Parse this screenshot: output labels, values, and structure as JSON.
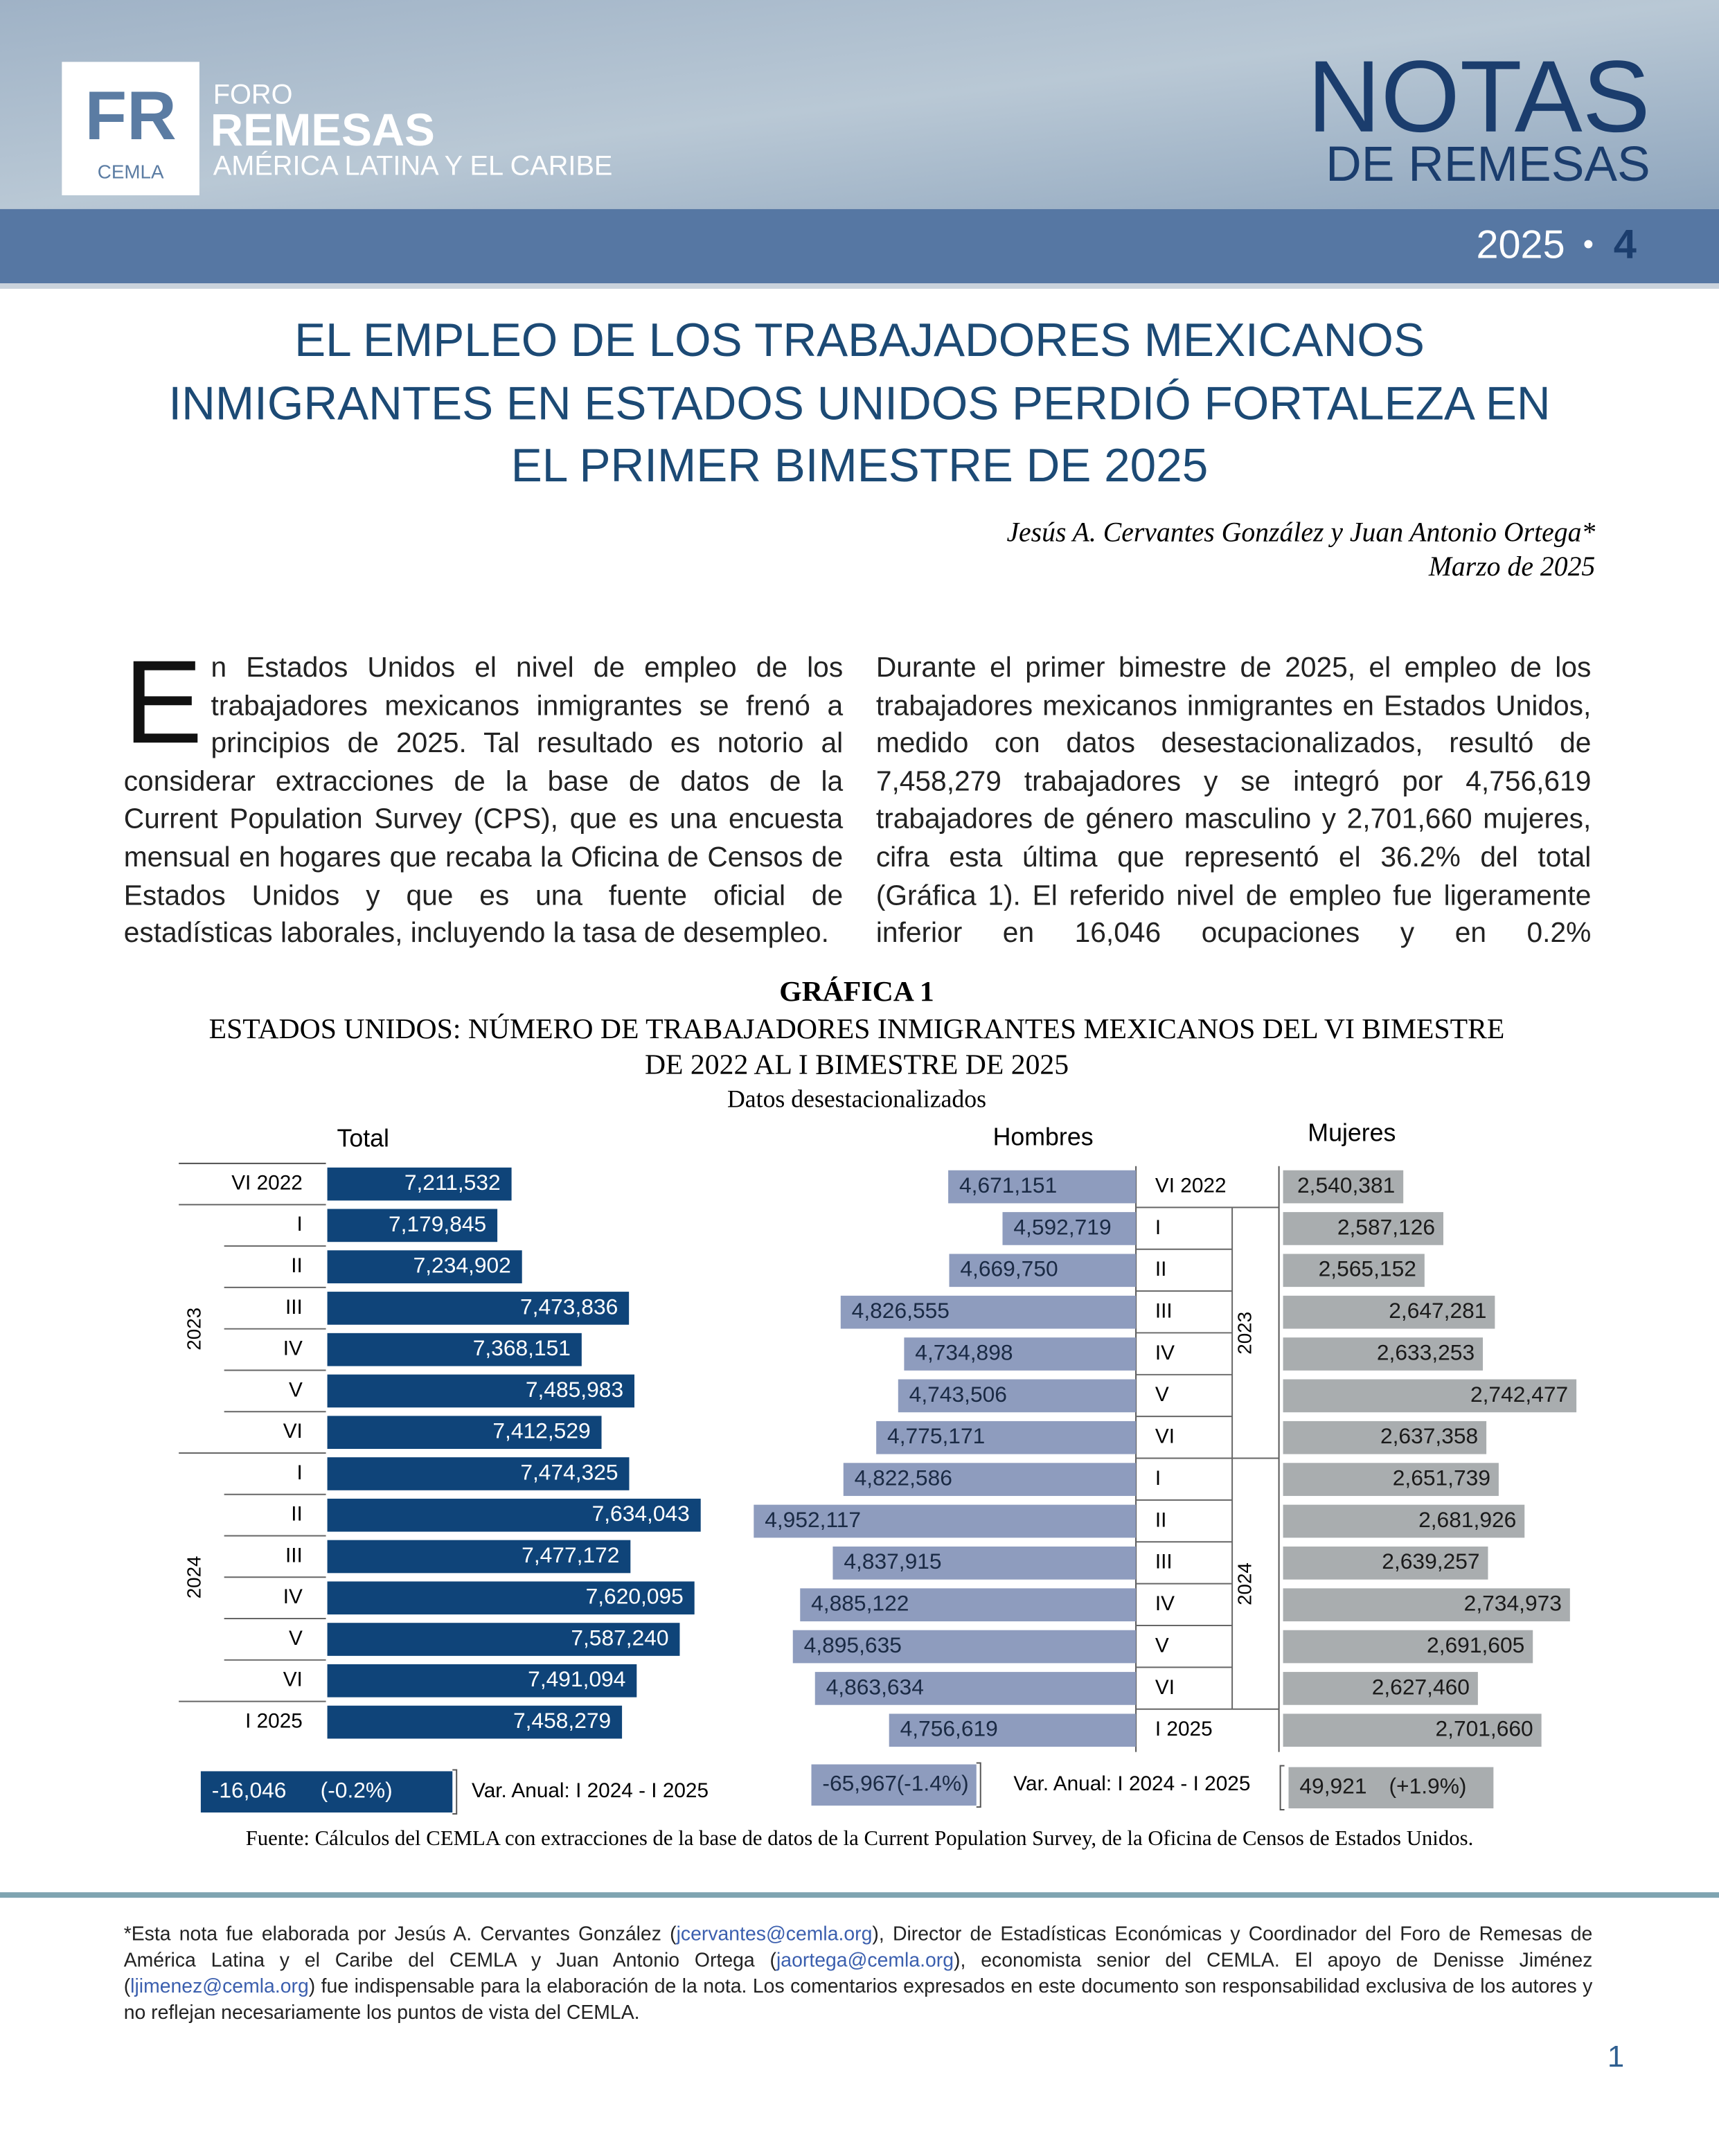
{
  "header": {
    "logo_mark": "FR",
    "logo_org": "CEMLA",
    "foro": "FORO",
    "remesas": "REMESAS",
    "region": "AMÉRICA LATINA Y EL CARIBE",
    "series_title": "NOTAS",
    "series_subtitle": "DE REMESAS",
    "year": "2025",
    "bullet": "•",
    "number": "4"
  },
  "article": {
    "title_lines": [
      "EL EMPLEO DE LOS TRABAJADORES MEXICANOS",
      "INMIGRANTES EN ESTADOS UNIDOS PERDIÓ FORTALEZA EN",
      "EL PRIMER BIMESTRE DE 2025"
    ],
    "authors": "Jesús A. Cervantes González y Juan Antonio Ortega*",
    "date": "Marzo de 2025",
    "col1": {
      "drop_cap": "E",
      "text": "n Estados Unidos el nivel de empleo de los trabajadores mexicanos inmigrantes se frenó a principios de 2025. Tal resultado es notorio al considerar extracciones de la base de datos de la Current Population Survey (CPS), que es una encuesta mensual en hogares que recaba la Oficina de Censos de Estados Unidos y que es una fuente oficial de estadísticas laborales, incluyendo la tasa de desempleo."
    },
    "col2": "Durante el primer bimestre de 2025, el empleo de los trabajadores mexicanos inmigrantes en Estados Unidos, medido con datos desestacionalizados, resultó de 7,458,279 trabajadores y se integró por 4,756,619 trabajadores de género masculino y 2,701,660 mujeres, cifra esta última que representó el 36.2% del total (Gráfica 1). El referido nivel de empleo fue ligeramente inferior en 16,046 ocupaciones y en 0.2%"
  },
  "chart_data": {
    "type": "bar",
    "label": "GRÁFICA 1",
    "title_lines": [
      "ESTADOS UNIDOS: NÚMERO DE TRABAJADORES INMIGRANTES MEXICANOS DEL VI BIMESTRE",
      "DE 2022 AL I BIMESTRE DE 2025"
    ],
    "subtitle": "Datos desestacionalizados",
    "categories": [
      "VI 2022",
      "I",
      "II",
      "III",
      "IV",
      "V",
      "VI",
      "I",
      "II",
      "III",
      "IV",
      "V",
      "VI",
      "I 2025"
    ],
    "groups": [
      "2023",
      "2024"
    ],
    "series": [
      {
        "name": "Total",
        "color": "#0f4479",
        "xlim": [
          6800000,
          7700000
        ],
        "values": [
          7211532,
          7179845,
          7234902,
          7473836,
          7368151,
          7485983,
          7412529,
          7474325,
          7634043,
          7477172,
          7620095,
          7587240,
          7491094,
          7458279
        ],
        "value_labels": [
          "7,211,532",
          "7,179,845",
          "7,234,902",
          "7,473,836",
          "7,368,151",
          "7,485,983",
          "7,412,529",
          "7,474,325",
          "7,634,043",
          "7,477,172",
          "7,620,095",
          "7,587,240",
          "7,491,094",
          "7,458,279"
        ]
      },
      {
        "name": "Hombres",
        "color": "#8e9cbe",
        "xlim": [
          4400000,
          5000000
        ],
        "values": [
          4671151,
          4592719,
          4669750,
          4826555,
          4734898,
          4743506,
          4775171,
          4822586,
          4952117,
          4837915,
          4885122,
          4895635,
          4863634,
          4756619
        ],
        "value_labels": [
          "4,671,151",
          "4,592,719",
          "4,669,750",
          "4,826,555",
          "4,734,898",
          "4,743,506",
          "4,775,171",
          "4,822,586",
          "4,952,117",
          "4,837,915",
          "4,885,122",
          "4,895,635",
          "4,863,634",
          "4,756,619"
        ]
      },
      {
        "name": "Mujeres",
        "color": "#a9adaf",
        "xlim": [
          2400000,
          2750000
        ],
        "values": [
          2540381,
          2587126,
          2565152,
          2647281,
          2633253,
          2742477,
          2637358,
          2651739,
          2681926,
          2639257,
          2734973,
          2691605,
          2627460,
          2701660
        ],
        "value_labels": [
          "2,540,381",
          "2,587,126",
          "2,565,152",
          "2,647,281",
          "2,633,253",
          "2,742,477",
          "2,637,358",
          "2,651,739",
          "2,681,926",
          "2,639,257",
          "2,734,973",
          "2,691,605",
          "2,627,460",
          "2,701,660"
        ]
      }
    ],
    "annual_change": {
      "label": "Var. Anual: I 2024 - I 2025",
      "values": [
        -16046,
        -65967,
        49921
      ],
      "value_labels": [
        "-16,046",
        "-65,967",
        "49,921"
      ],
      "pct": [
        -0.2,
        -1.4,
        1.9
      ],
      "pct_labels": [
        "(-0.2%)",
        "(-1.4%)",
        "(+1.9%)"
      ]
    },
    "source": "Fuente: Cálculos del CEMLA con extracciones de la base de datos de la Current Population Survey, de la Oficina de Censos de Estados Unidos."
  },
  "footnote": [
    "*Esta nota fue elaborada por Jesús A. Cervantes González (",
    "jcervantes@cemla.org",
    "), Director de Estadísticas Económicas y Coordinador del Foro de Remesas de América Latina y el Caribe del CEMLA y Juan Antonio Ortega (",
    "jaortega@cemla.org",
    "), economista senior del CEMLA. El apoyo de Denisse Jiménez (",
    "ljimenez@cemla.org",
    ") fue indispensable para la elaboración de la nota. Los comentarios expresados en este documento son responsabilidad exclusiva de los autores y no reflejan necesariamente los puntos de vista del CEMLA."
  ],
  "page_number": "1"
}
